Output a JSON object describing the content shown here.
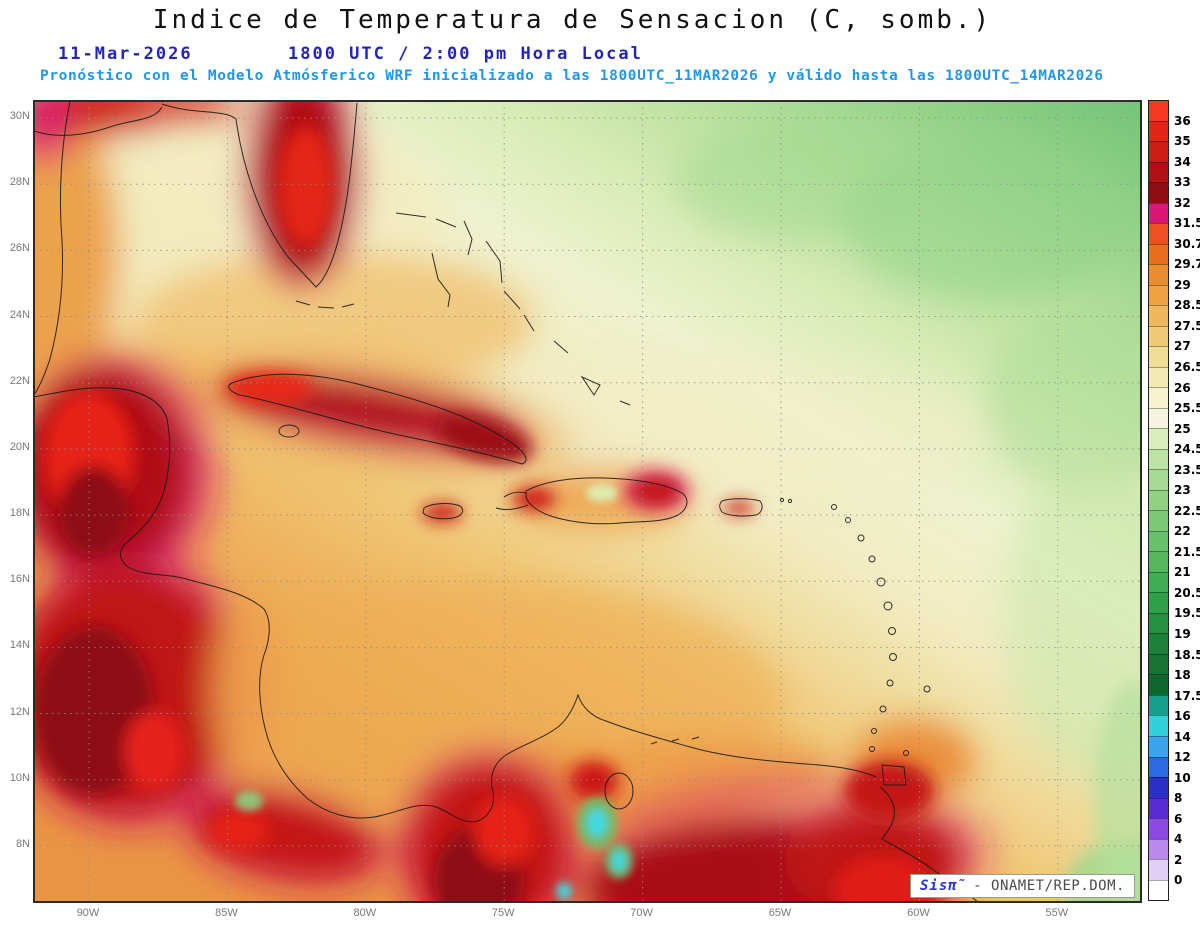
{
  "header": {
    "title": "Indice de Temperatura de Sensacion (C, somb.)",
    "run_date": "11-Mar-2026",
    "run_time": "1800 UTC / 2:00 pm Hora Local",
    "forecast_line": "Pronóstico con el Modelo Atmósferico WRF inicializado a las 1800UTC_11MAR2026 y válido hasta las  1800UTC_14MAR2026"
  },
  "branding": {
    "brand": "Sisπ̃",
    "credit": "- ONAMET/REP.DOM."
  },
  "chart_data": {
    "type": "heatmap",
    "title": "Indice de Temperatura de Sensacion (C, somb.)",
    "units": "°C",
    "model": "WRF",
    "initialized": "1800UTC_11MAR2026",
    "valid_until": "1800UTC_14MAR2026",
    "region": "Caribbean / Gulf of Mexico / northern South America",
    "x_ticks": [
      "90W",
      "85W",
      "80W",
      "75W",
      "70W",
      "65W",
      "60W",
      "55W"
    ],
    "y_ticks": [
      "30N",
      "28N",
      "26N",
      "24N",
      "22N",
      "20N",
      "18N",
      "16N",
      "14N",
      "12N",
      "10N",
      "8N"
    ],
    "lon_extent_deg_w": [
      92,
      52
    ],
    "lat_extent_deg_n": [
      6.5,
      30.5
    ],
    "grid": "dotted",
    "legend_position": "right",
    "colorbar_labels_top_to_bottom": [
      "36",
      "35",
      "34",
      "33",
      "32",
      "31.5",
      "30.7",
      "29.7",
      "29",
      "28.5",
      "27.5",
      "27",
      "26.5",
      "26",
      "25.5",
      "25",
      "24.5",
      "23.5",
      "23",
      "22.5",
      "22",
      "21.5",
      "21",
      "20.5",
      "19.5",
      "19",
      "18.5",
      "18",
      "17.5",
      "16",
      "14",
      "12",
      "10",
      "8",
      "6",
      "4",
      "2",
      "0"
    ],
    "colorbar_colors_top_to_bottom": [
      "#f93822",
      "#e32518",
      "#cf1b15",
      "#b01116",
      "#8d0d12",
      "#dc1677",
      "#f04f24",
      "#e96c1f",
      "#ea8c30",
      "#efa143",
      "#f0b85c",
      "#f0ca79",
      "#efdc96",
      "#f2eab2",
      "#f6f2cd",
      "#f3f4dd",
      "#d9edbd",
      "#bce3a4",
      "#a4da92",
      "#90d284",
      "#7cc977",
      "#68c06a",
      "#54b75e",
      "#40ad52",
      "#2f9f48",
      "#268f41",
      "#1d813a",
      "#157434",
      "#0e672d",
      "#15a08c",
      "#32d0d9",
      "#3aa4ef",
      "#2b6ae4",
      "#2a2fc8",
      "#5a2ad2",
      "#8b4be0",
      "#b98aec",
      "#e0d0f6",
      "#ffffff"
    ],
    "field_samples": [
      {
        "region": "Atlantico noreste (27N 55W)",
        "value_c": 23
      },
      {
        "region": "Atlantico central (25N 65W)",
        "value_c": 25.5
      },
      {
        "region": "Golfo de Mexico (27N 88W)",
        "value_c": 26.5
      },
      {
        "region": "Mar Caribe central (15N 75W)",
        "value_c": 28.5
      },
      {
        "region": "Florida interior",
        "value_c": 34
      },
      {
        "region": "Cuba interior",
        "value_c": 33
      },
      {
        "region": "La Española interior",
        "value_c": 30
      },
      {
        "region": "Peninsula de Yucatan",
        "value_c": 35
      },
      {
        "region": "Honduras / Nicaragua interior",
        "value_c": 34
      },
      {
        "region": "Costa Rica / Panama",
        "value_c": 32
      },
      {
        "region": "Costa de Colombia",
        "value_c": 35
      },
      {
        "region": "Interior de Venezuela",
        "value_c": 34
      },
      {
        "region": "Andes colombianos (picos)",
        "value_c": 13
      },
      {
        "region": "Antillas Menores",
        "value_c": 29
      }
    ]
  }
}
